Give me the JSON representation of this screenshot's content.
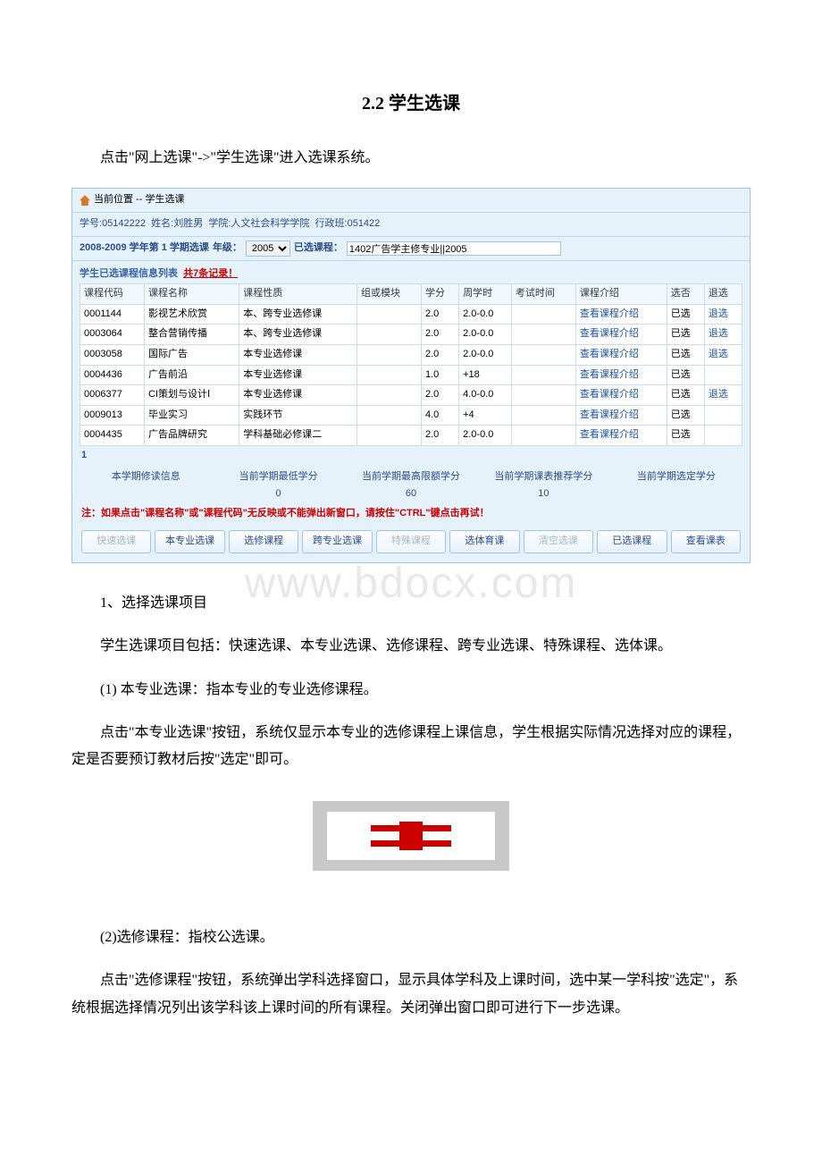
{
  "title": "2.2 学生选课",
  "intro": "点击\"网上选课\"->\"学生选课\"进入选课系统。",
  "watermark": "www.bdocx.com",
  "app": {
    "location_label": "当前位置 -- 学生选课",
    "student_info_prefix": "学号:",
    "student_id": "05142222",
    "name_prefix": "姓名:",
    "name": "刘胜男",
    "college_prefix": "学院:",
    "college": "人文社会科学学院",
    "class_prefix": "行政班:",
    "class": "051422",
    "term_prefix": "2008-2009 学年第 1 学期选课",
    "grade_label": "年级：",
    "grade_value": "2005",
    "selected_label": "已选课程：",
    "selected_course": "1402广告学主修专业||2005",
    "list_header_text": "学生已选课程信息列表",
    "record_count": "共7条记录！",
    "columns": [
      "课程代码",
      "课程名称",
      "课程性质",
      "组或模块",
      "学分",
      "周学时",
      "考试时间",
      "课程介绍",
      "选否",
      "退选"
    ],
    "rows": [
      {
        "code": "0001144",
        "name": "影视艺术欣赏",
        "type": "本、跨专业选修课",
        "mod": "",
        "credit": "2.0",
        "hours": "2.0-0.0",
        "exam": "",
        "intro": "查看课程介绍",
        "sel": "已选",
        "drop": "退选"
      },
      {
        "code": "0003064",
        "name": "整合营销传播",
        "type": "本、跨专业选修课",
        "mod": "",
        "credit": "2.0",
        "hours": "2.0-0.0",
        "exam": "",
        "intro": "查看课程介绍",
        "sel": "已选",
        "drop": "退选"
      },
      {
        "code": "0003058",
        "name": "国际广告",
        "type": "本专业选修课",
        "mod": "",
        "credit": "2.0",
        "hours": "2.0-0.0",
        "exam": "",
        "intro": "查看课程介绍",
        "sel": "已选",
        "drop": "退选"
      },
      {
        "code": "0004436",
        "name": "广告前沿",
        "type": "本专业选修课",
        "mod": "",
        "credit": "1.0",
        "hours": "+18",
        "exam": "",
        "intro": "查看课程介绍",
        "sel": "已选",
        "drop": ""
      },
      {
        "code": "0006377",
        "name": "CI策划与设计Ⅰ",
        "type": "本专业选修课",
        "mod": "",
        "credit": "2.0",
        "hours": "4.0-0.0",
        "exam": "",
        "intro": "查看课程介绍",
        "sel": "已选",
        "drop": "退选"
      },
      {
        "code": "0009013",
        "name": "毕业实习",
        "type": "实践环节",
        "mod": "",
        "credit": "4.0",
        "hours": "+4",
        "exam": "",
        "intro": "查看课程介绍",
        "sel": "已选",
        "drop": ""
      },
      {
        "code": "0004435",
        "name": "广告品牌研究",
        "type": "学科基础必修课二",
        "mod": "",
        "credit": "2.0",
        "hours": "2.0-0.0",
        "exam": "",
        "intro": "查看课程介绍",
        "sel": "已选",
        "drop": ""
      }
    ],
    "page_num": "1",
    "summary_labels": [
      "本学期修读信息",
      "当前学期最低学分",
      "当前学期最高限额学分",
      "当前学期课表推荐学分",
      "当前学期选定学分"
    ],
    "summary_values": [
      "",
      "0",
      "60",
      "10",
      ""
    ],
    "note": "注：如果点击\"课程名称\"或\"课程代码\"无反映或不能弹出新窗口，请按住\"CTRL\"键点击再试！",
    "buttons": [
      {
        "label": "快速选课",
        "disabled": true
      },
      {
        "label": "本专业选课",
        "disabled": false
      },
      {
        "label": "选修课程",
        "disabled": false
      },
      {
        "label": "跨专业选课",
        "disabled": false
      },
      {
        "label": "特殊课程",
        "disabled": true
      },
      {
        "label": "选体育课",
        "disabled": false
      },
      {
        "label": "清空选课",
        "disabled": true
      },
      {
        "label": "已选课程",
        "disabled": false
      },
      {
        "label": "查看课表",
        "disabled": false
      }
    ]
  },
  "para1": "1、选择选课项目",
  "para2": "学生选课项目包括：快速选课、本专业选课、选修课程、跨专业选课、特殊课程、选体课。",
  "para3": "(1) 本专业选课：指本专业的专业选修课程。",
  "para4_a": "点击\"本专业选课\"按钮，系统仅显示本专业的选修课程上课信息，学生根据实际情况选择对应的课程，定是否要预订教材后按\"选定\"即可。",
  "para5": "(2)选修课程：指校公选课。",
  "para6": "点击\"选修课程\"按钮，系统弹出学科选择窗口，显示具体学科及上课时间，选中某一学科按\"选定\"，系统根据选择情况列出该学科该上课时间的所有课程。关闭弹出窗口即可进行下一步选课。",
  "colors": {
    "panel_border": "#9ec5e9",
    "panel_bg": "#e6f2fa",
    "link": "#1c54a8",
    "red": "#cc0000"
  }
}
